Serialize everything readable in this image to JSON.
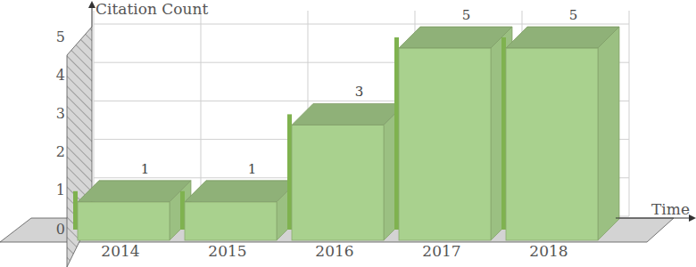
{
  "chart_data": {
    "type": "bar",
    "x_label": "Time",
    "y_label": "Citation Count",
    "categories": [
      "2014",
      "2015",
      "2016",
      "2017",
      "2018"
    ],
    "values": [
      1,
      1,
      3,
      5,
      5
    ],
    "color": "#a9d18e",
    "ylim": [
      0,
      5
    ],
    "yticks": [
      0,
      1,
      2,
      3,
      4,
      5
    ],
    "grid": true,
    "data_labels": true
  }
}
